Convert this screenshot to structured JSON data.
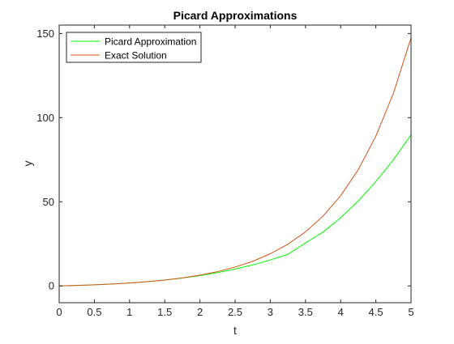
{
  "chart_data": {
    "type": "line",
    "title": "Picard Approximations",
    "xlabel": "t",
    "ylabel": "y",
    "xlim": [
      0,
      5
    ],
    "ylim": [
      -10,
      155
    ],
    "x_ticks": [
      0,
      0.5,
      1,
      1.5,
      2,
      2.5,
      3,
      3.5,
      4,
      4.5,
      5
    ],
    "x_tick_labels": [
      "0",
      "0.5",
      "1",
      "1.5",
      "2",
      "2.5",
      "3",
      "3.5",
      "4",
      "4.5",
      "5"
    ],
    "y_ticks": [
      0,
      50,
      100,
      150
    ],
    "y_tick_labels": [
      "0",
      "50",
      "100",
      "150"
    ],
    "grid": false,
    "legend_position": "top-left",
    "x": [
      0,
      0.25,
      0.5,
      0.75,
      1,
      1.25,
      1.5,
      1.75,
      2,
      2.25,
      2.5,
      2.75,
      3,
      3.25,
      3.5,
      3.75,
      4,
      4.25,
      4.5,
      4.75,
      5
    ],
    "series": [
      {
        "name": "Picard Approximation",
        "color": "#00ff00",
        "values": [
          0,
          0.28,
          0.65,
          1.12,
          1.72,
          2.49,
          3.45,
          4.66,
          6.13,
          7.9,
          10.0,
          12.5,
          15.4,
          18.8,
          25.5,
          32.0,
          40.5,
          50.5,
          62.0,
          75.0,
          89.8
        ]
      },
      {
        "name": "Exact Solution",
        "color": "#d95319",
        "values": [
          0,
          0.28,
          0.65,
          1.12,
          1.72,
          2.49,
          3.48,
          4.75,
          6.39,
          8.49,
          11.2,
          14.6,
          19.1,
          24.8,
          32.1,
          41.5,
          53.6,
          69.1,
          89.0,
          114.5,
          147.4
        ]
      }
    ]
  }
}
